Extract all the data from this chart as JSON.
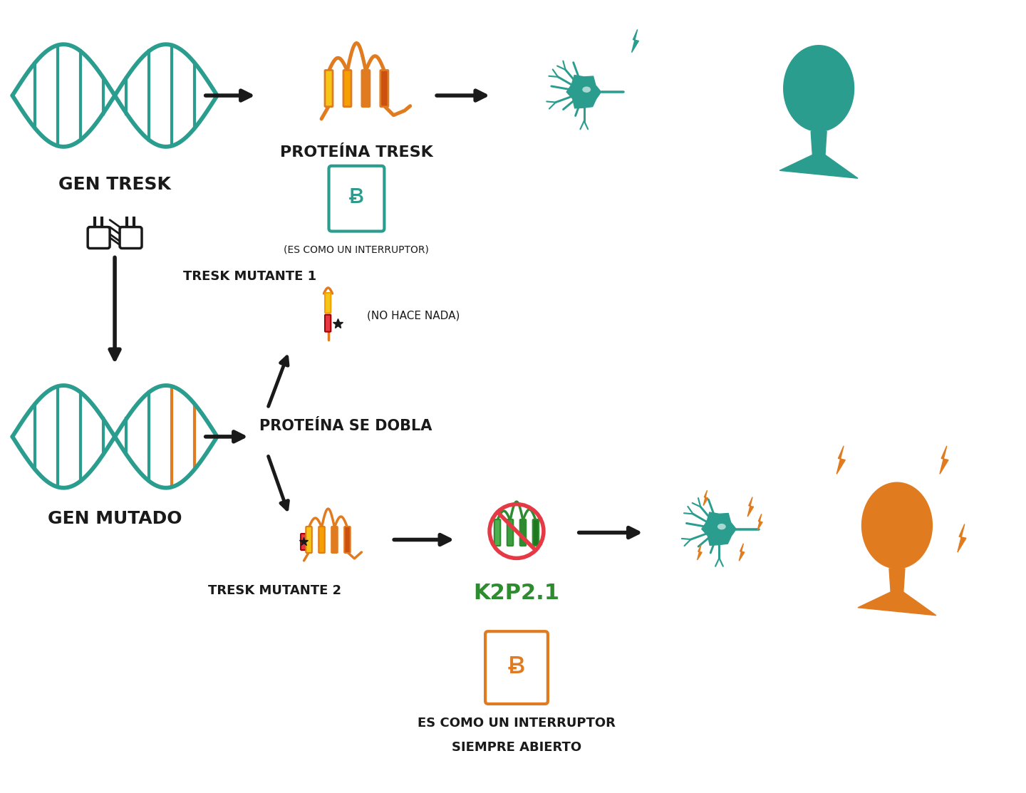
{
  "teal": "#2a9d8f",
  "orange": "#e07b20",
  "yellow": "#f5c518",
  "red": "#e63946",
  "green": "#4caf50",
  "black": "#1a1a1a",
  "white": "#ffffff",
  "background": "#ffffff",
  "text_gen_tresk": "GEN TRESK",
  "text_gen_mutado": "GEN MUTADO",
  "text_proteina_tresk": "PROTEÍNA TRESK",
  "text_interruptor": "(ES COMO UN INTERRUPTOR)",
  "text_tresk_mutante1": "TRESK MUTANTE 1",
  "text_no_hace_nada": "(NO HACE NADA)",
  "text_proteina_se_dobla": "PROTEÍNA SE DOBLA",
  "text_tresk_mutante2": "TRESK MUTANTE 2",
  "text_k2p21": "K2P2.1",
  "text_interruptor2_line1": "ES COMO UN INTERRUPTOR",
  "text_interruptor2_line2": "SIEMPRE ABIERTO"
}
